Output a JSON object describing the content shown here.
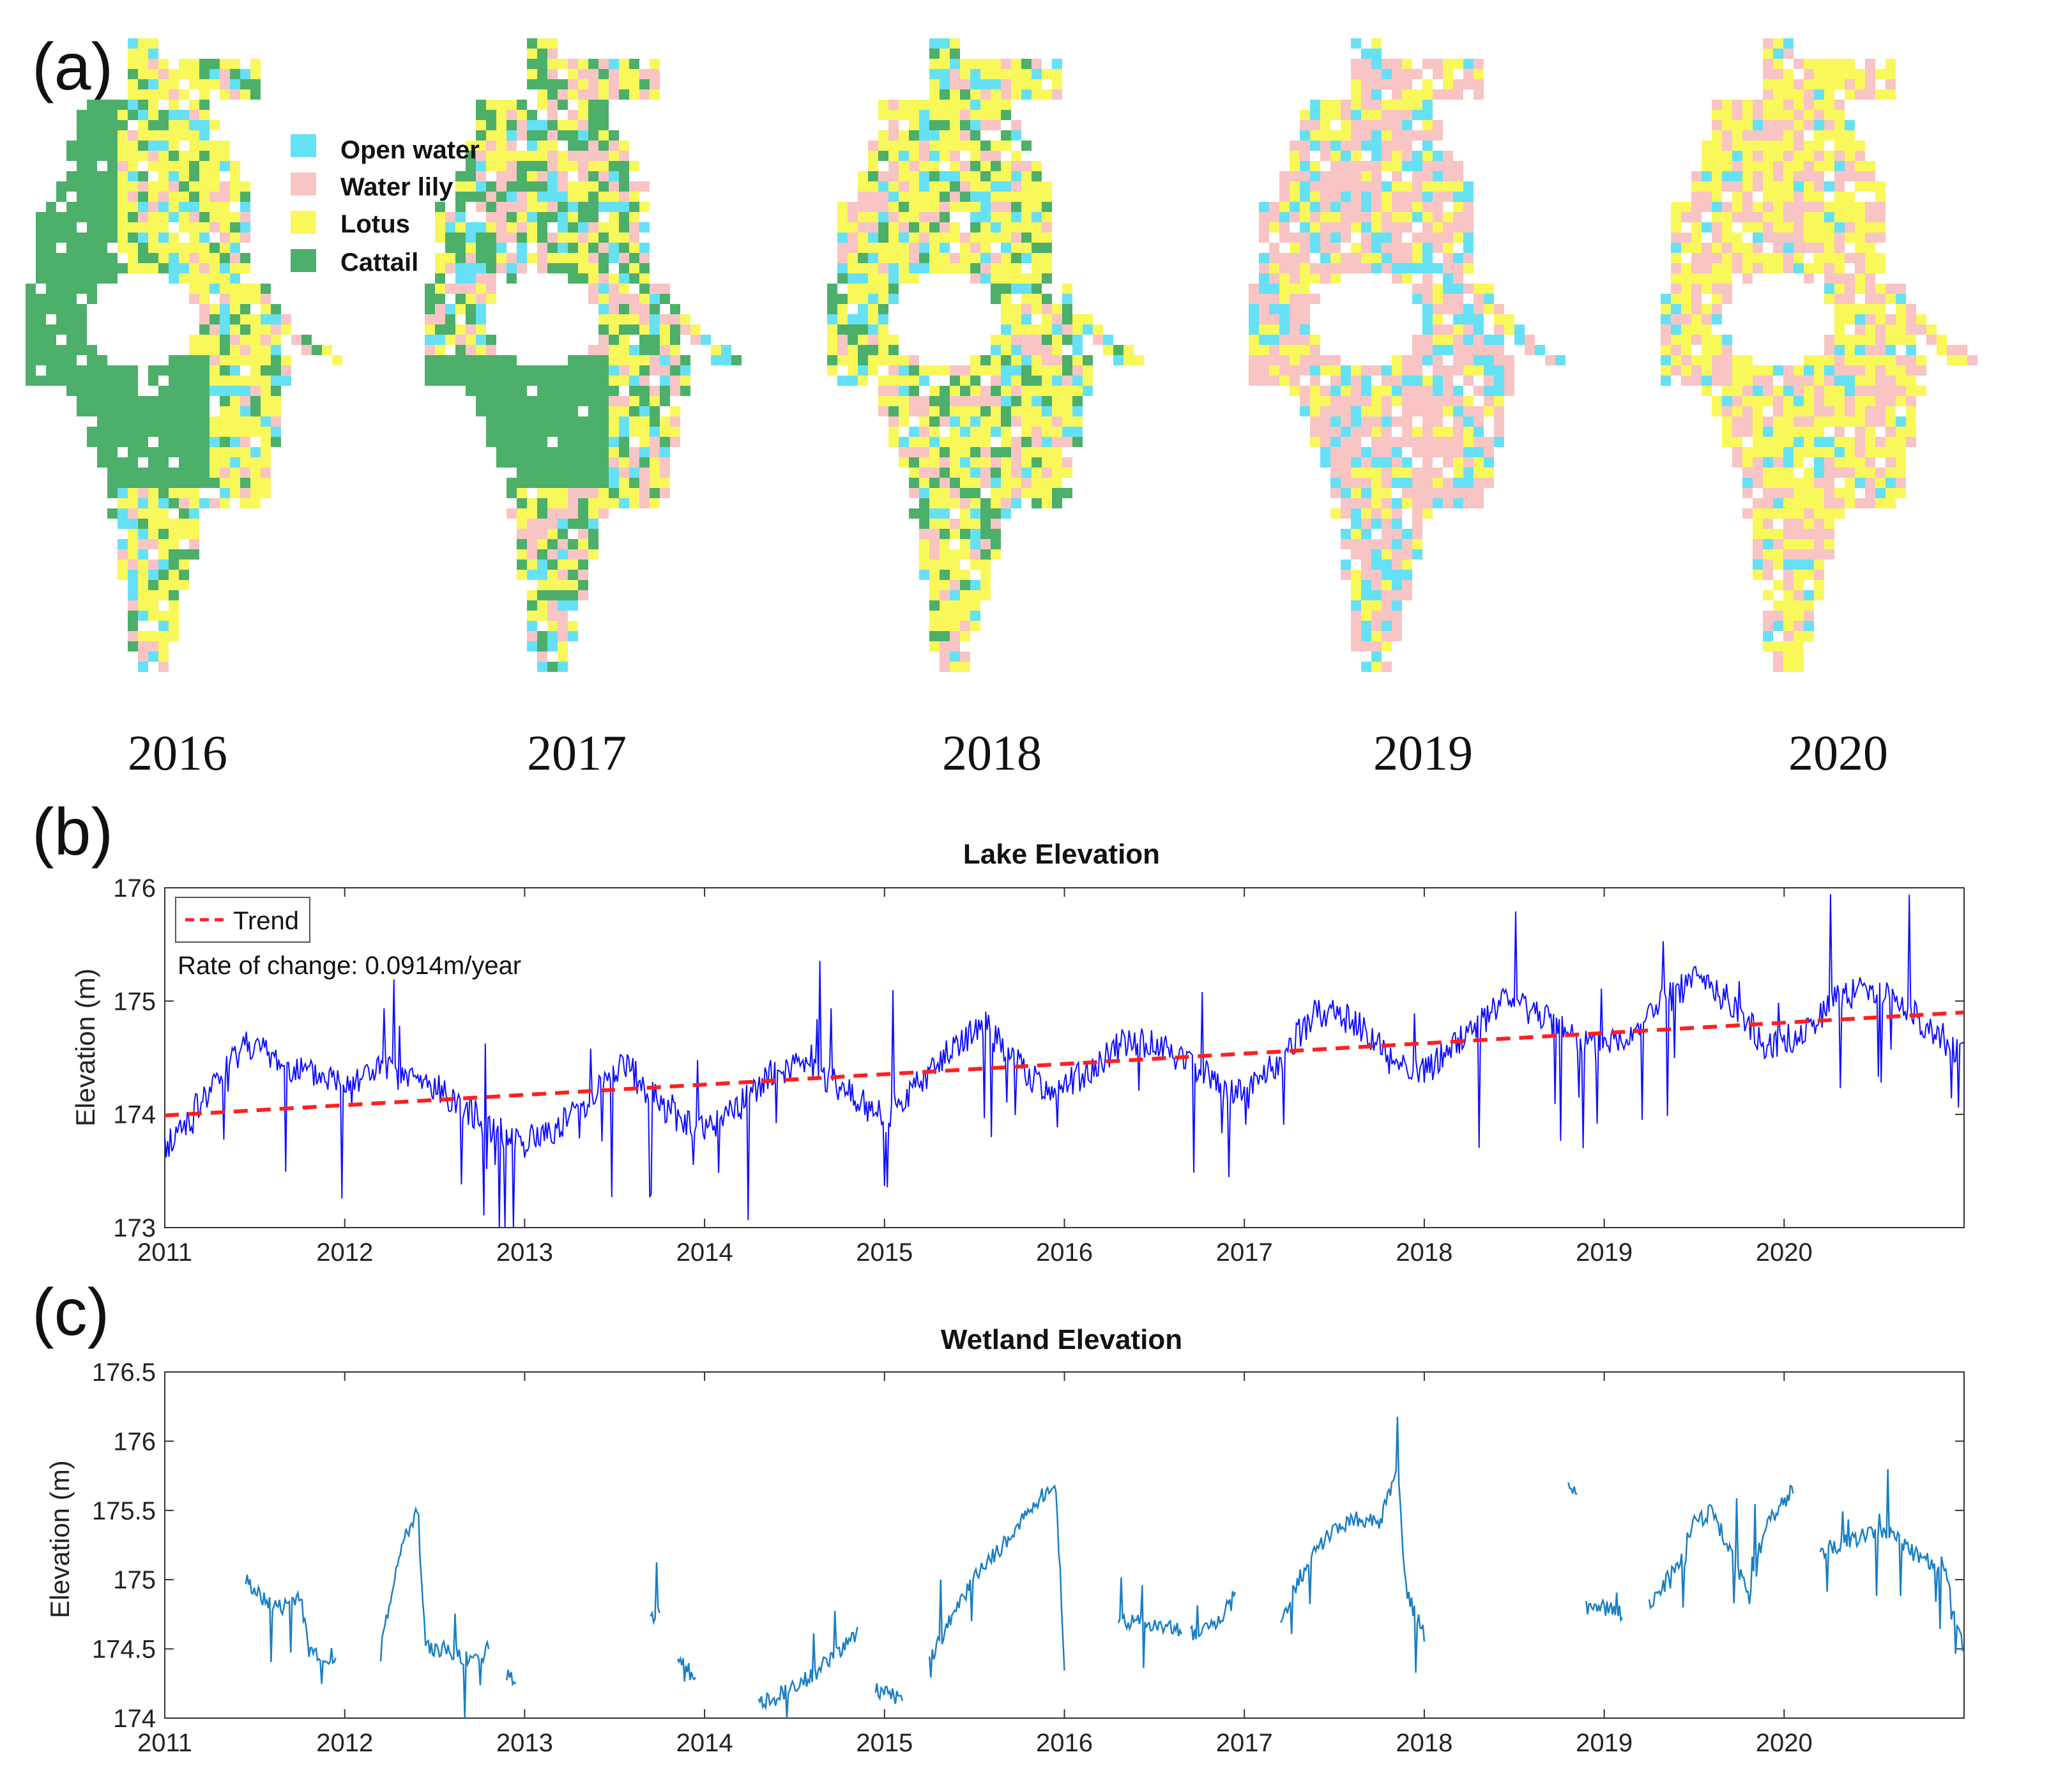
{
  "panels": {
    "a": "(a)",
    "b": "(b)",
    "c": "(c)"
  },
  "map_panel": {
    "years": [
      "2016",
      "2017",
      "2018",
      "2019",
      "2020"
    ],
    "legend": [
      {
        "label": "Open water",
        "color": "#66e0f5"
      },
      {
        "label": "Water lily",
        "color": "#f8c4c4"
      },
      {
        "label": "Lotus",
        "color": "#f8f85a"
      },
      {
        "label": "Cattail",
        "color": "#4caf6a"
      }
    ]
  },
  "chart_data": [
    {
      "type": "line",
      "title": "Lake Elevation",
      "xlabel": "",
      "ylabel": "Elevation (m)",
      "xlim": [
        2011,
        2021
      ],
      "ylim": [
        173,
        176
      ],
      "x_ticks": [
        "2011",
        "2012",
        "2013",
        "2014",
        "2015",
        "2016",
        "2017",
        "2018",
        "2019",
        "2020"
      ],
      "y_ticks": [
        "173",
        "174",
        "175",
        "176"
      ],
      "legend": [
        {
          "label": "Trend",
          "style": "dashed",
          "color": "#ff2020"
        }
      ],
      "annotation": "Rate of change: 0.0914m/year",
      "series": [
        {
          "name": "Lake elevation",
          "color": "#1010ff",
          "x": [
            2011.0,
            2011.15,
            2011.3,
            2011.45,
            2011.6,
            2011.8,
            2012.0,
            2012.2,
            2012.4,
            2012.6,
            2012.8,
            2013.0,
            2013.2,
            2013.4,
            2013.55,
            2013.75,
            2013.95,
            2014.15,
            2014.4,
            2014.6,
            2014.8,
            2015.0,
            2015.2,
            2015.4,
            2015.55,
            2015.7,
            2015.9,
            2016.1,
            2016.35,
            2016.55,
            2016.75,
            2017.0,
            2017.2,
            2017.4,
            2017.6,
            2017.8,
            2018.0,
            2018.2,
            2018.45,
            2018.7,
            2018.9,
            2019.1,
            2019.3,
            2019.5,
            2019.7,
            2019.9,
            2020.1,
            2020.3,
            2020.5,
            2020.7,
            2020.9,
            2021.0
          ],
          "values": [
            173.7,
            174.0,
            174.3,
            174.65,
            174.5,
            174.35,
            174.3,
            174.4,
            174.3,
            174.15,
            173.9,
            173.75,
            173.9,
            174.2,
            174.45,
            174.1,
            173.85,
            174.0,
            174.4,
            174.4,
            174.2,
            173.95,
            174.3,
            174.6,
            174.8,
            174.5,
            174.2,
            174.35,
            174.65,
            174.6,
            174.4,
            174.15,
            174.5,
            174.9,
            174.85,
            174.5,
            174.35,
            174.65,
            175.0,
            174.85,
            174.6,
            174.65,
            174.95,
            175.2,
            175.0,
            174.6,
            174.7,
            175.05,
            175.1,
            174.9,
            174.65,
            174.5
          ]
        },
        {
          "name": "Trend",
          "style": "dashed",
          "color": "#ff2020",
          "x": [
            2011,
            2021
          ],
          "values": [
            173.99,
            174.9
          ]
        }
      ]
    },
    {
      "type": "line",
      "title": "Wetland Elevation",
      "xlabel": "",
      "ylabel": "Elevation (m)",
      "xlim": [
        2011,
        2021
      ],
      "ylim": [
        174,
        176.5
      ],
      "x_ticks": [
        "2011",
        "2012",
        "2013",
        "2014",
        "2015",
        "2016",
        "2017",
        "2018",
        "2019",
        "2020"
      ],
      "y_ticks": [
        "174",
        "174.5",
        "175",
        "175.5",
        "176",
        "176.5"
      ],
      "series": [
        {
          "name": "Wetland elevation",
          "color": "#1a7fc4",
          "segments": [
            {
              "x": [
                2011.45,
                2011.55,
                2011.65,
                2011.75,
                2011.8,
                2011.9,
                2011.95
              ],
              "values": [
                175.0,
                174.85,
                174.8,
                174.9,
                174.5,
                174.45,
                174.4
              ]
            },
            {
              "x": [
                2012.2,
                2012.3,
                2012.4,
                2012.45,
                2012.55,
                2012.65,
                2012.75,
                2012.8
              ],
              "values": [
                174.5,
                175.2,
                175.5,
                174.5,
                174.5,
                174.45,
                174.4,
                174.55
              ]
            },
            {
              "x": [
                2012.9,
                2012.95
              ],
              "values": [
                174.3,
                174.25
              ]
            },
            {
              "x": [
                2013.7,
                2013.75
              ],
              "values": [
                174.7,
                174.75
              ]
            },
            {
              "x": [
                2013.85,
                2013.9,
                2013.95
              ],
              "values": [
                174.45,
                174.35,
                174.3
              ]
            },
            {
              "x": [
                2014.3,
                2014.45,
                2014.6,
                2014.75,
                2014.85
              ],
              "values": [
                174.1,
                174.2,
                174.3,
                174.5,
                174.6
              ]
            },
            {
              "x": [
                2014.95,
                2015.1
              ],
              "values": [
                174.2,
                174.15
              ]
            },
            {
              "x": [
                2015.25,
                2015.4,
                2015.55,
                2015.7,
                2015.8,
                2015.9,
                2015.95,
                2016.0
              ],
              "values": [
                174.4,
                174.8,
                175.1,
                175.3,
                175.5,
                175.65,
                175.7,
                174.4
              ]
            },
            {
              "x": [
                2016.3,
                2016.45,
                2016.55,
                2016.65
              ],
              "values": [
                174.7,
                174.7,
                174.65,
                174.65
              ]
            },
            {
              "x": [
                2016.7,
                2016.85,
                2016.95
              ],
              "values": [
                174.6,
                174.7,
                174.9
              ]
            },
            {
              "x": [
                2017.2,
                2017.3,
                2017.45,
                2017.6,
                2017.75,
                2017.85,
                2017.9,
                2018.0
              ],
              "values": [
                174.7,
                175.0,
                175.3,
                175.45,
                175.4,
                175.8,
                174.9,
                174.6
              ]
            },
            {
              "x": [
                2018.8,
                2018.85
              ],
              "values": [
                175.65,
                175.6
              ]
            },
            {
              "x": [
                2018.9,
                2019.0,
                2019.1
              ],
              "values": [
                174.85,
                174.8,
                174.75
              ]
            },
            {
              "x": [
                2019.25,
                2019.4,
                2019.5,
                2019.6,
                2019.7,
                2019.8,
                2019.9,
                2020.05
              ],
              "values": [
                174.8,
                175.1,
                175.4,
                175.5,
                175.2,
                174.9,
                175.4,
                175.65
              ]
            },
            {
              "x": [
                2020.2,
                2020.4,
                2020.6,
                2020.75,
                2020.9,
                2020.95,
                2021.0
              ],
              "values": [
                175.2,
                175.3,
                175.35,
                175.15,
                175.1,
                174.7,
                174.5
              ]
            }
          ]
        }
      ]
    }
  ]
}
